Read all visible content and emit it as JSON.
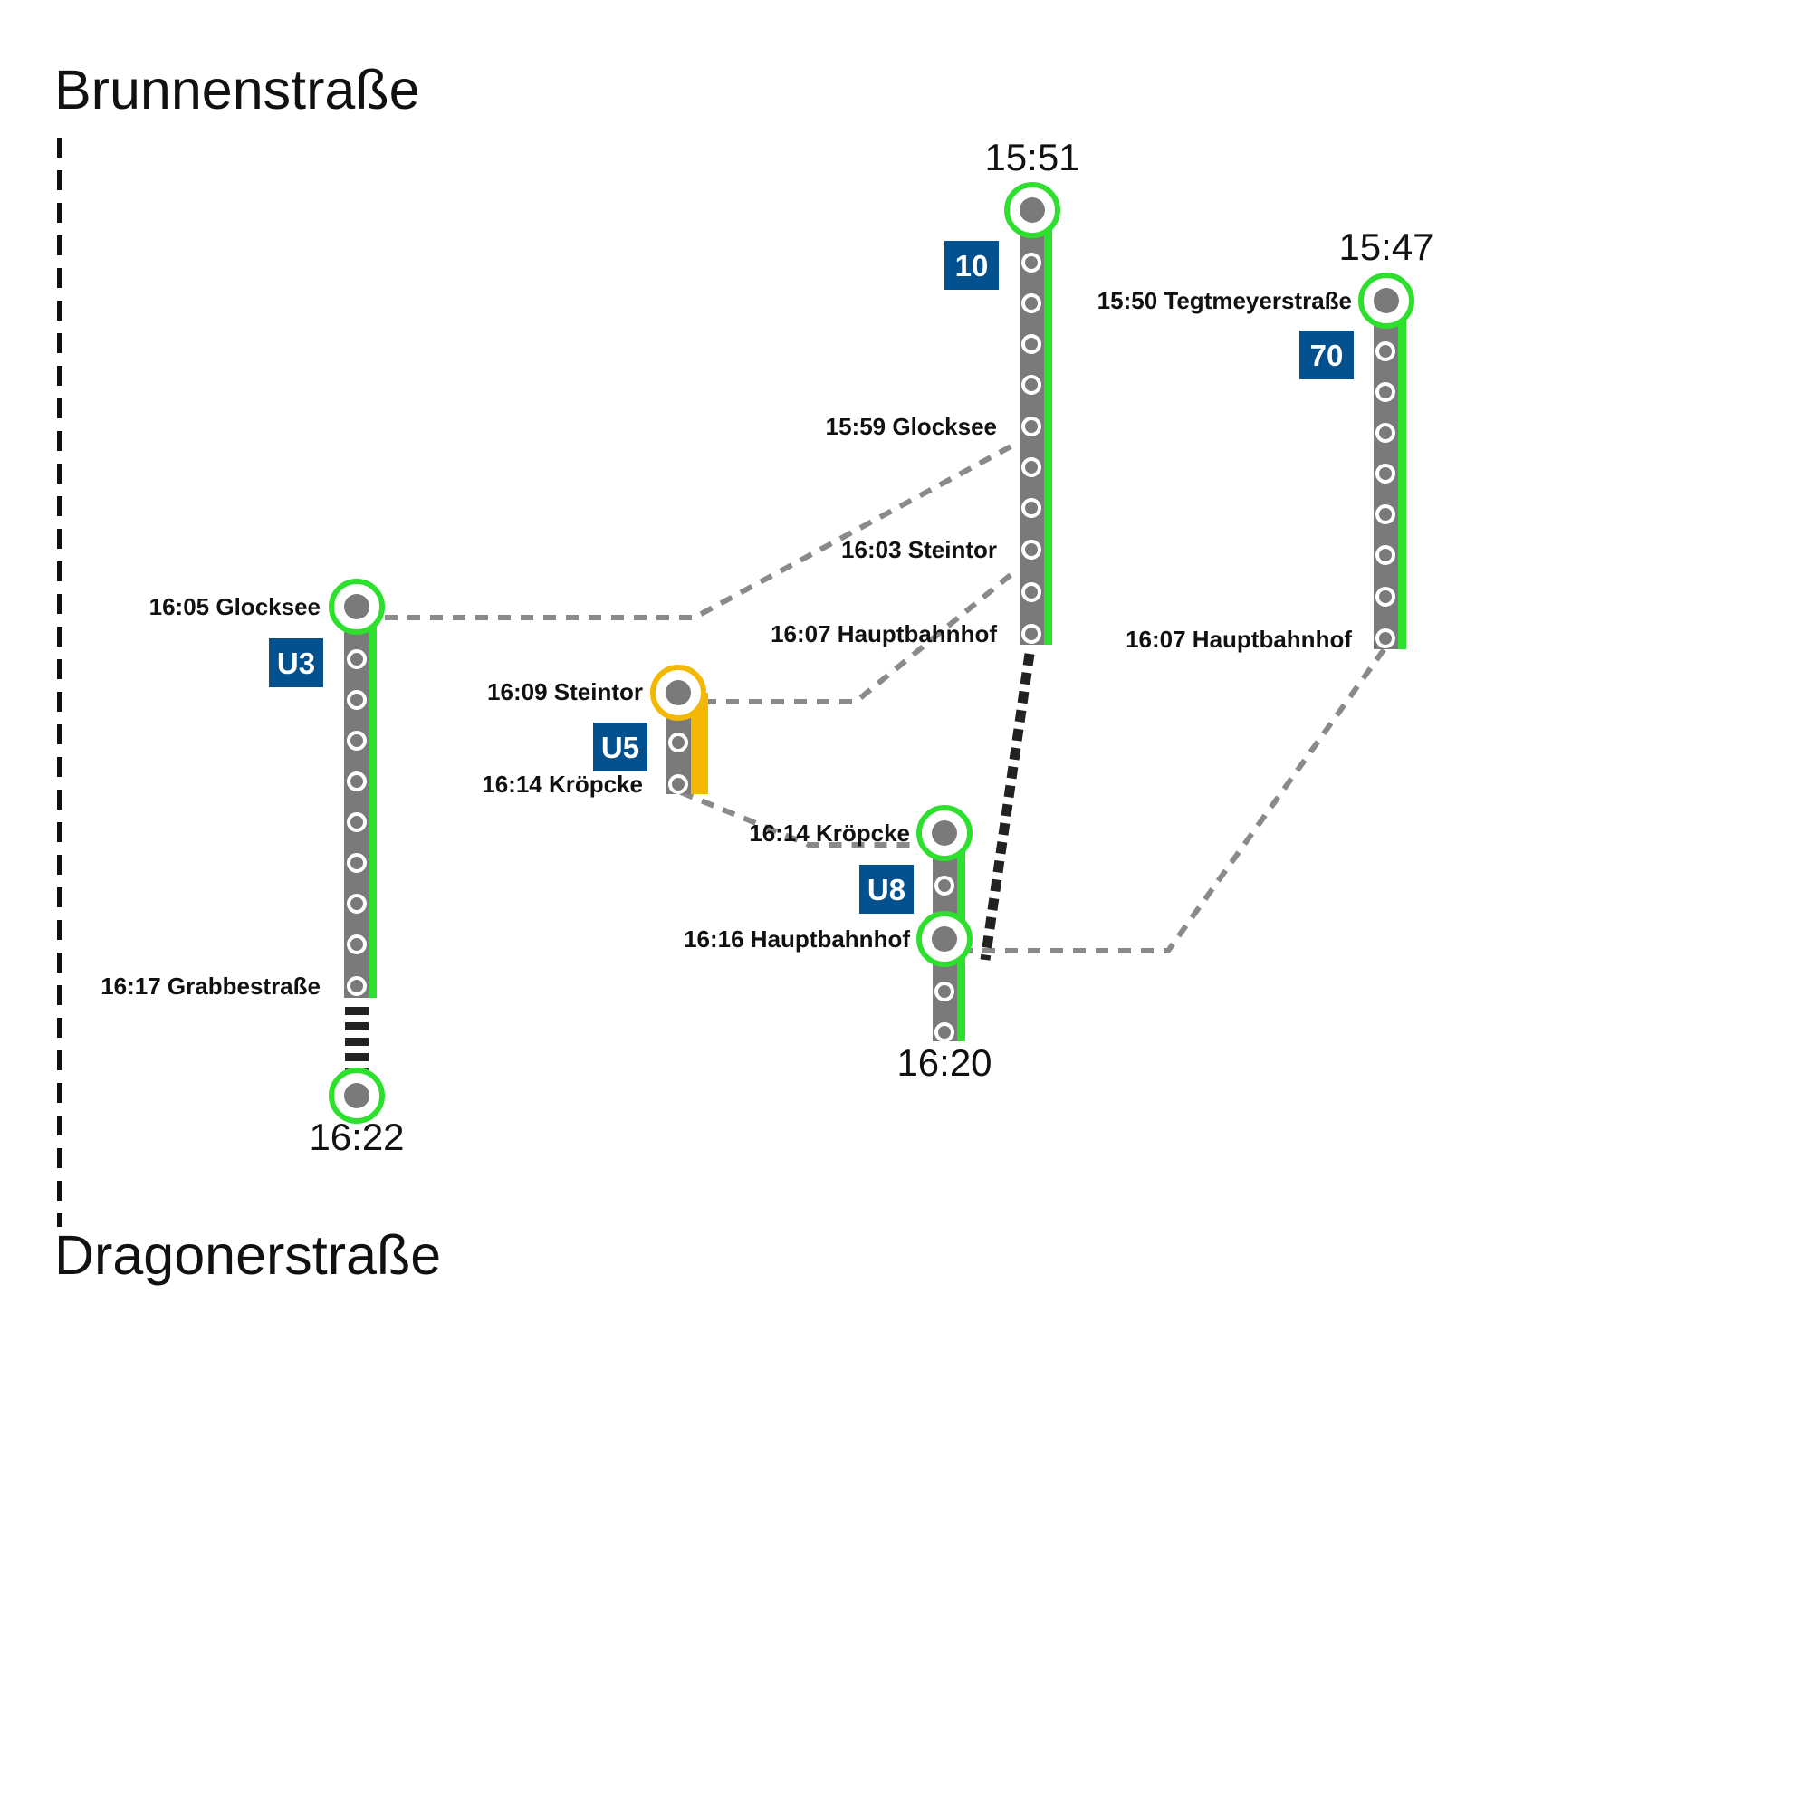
{
  "origin": "Brunnenstraße",
  "destination": "Dragonerstraße",
  "colors": {
    "background": "#ffffff",
    "track": "#7a7a7a",
    "line_green": "#2ee02e",
    "line_yellow": "#f5b800",
    "badge_blue": "#03508f",
    "connector_gray": "#8a8a8a",
    "walk_black": "#222222"
  },
  "routes": [
    {
      "id": "u3",
      "line": "U3",
      "accent": "green",
      "start_time": "",
      "end_time": "16:22",
      "labels": [
        "16:05 Glocksee",
        "16:17 Grabbestraße"
      ]
    },
    {
      "id": "u5",
      "line": "U5",
      "accent": "yellow",
      "start_time": "",
      "end_time": "",
      "labels": [
        "16:09 Steintor",
        "16:14 Kröpcke"
      ]
    },
    {
      "id": "u8",
      "line": "U8",
      "accent": "green",
      "start_time": "",
      "end_time": "16:20",
      "labels": [
        "16:14 Kröpcke",
        "16:16 Hauptbahnhof"
      ]
    },
    {
      "id": "bus10",
      "line": "10",
      "accent": "green",
      "start_time": "15:51",
      "end_time": "",
      "labels": [
        "15:59 Glocksee",
        "16:03 Steintor",
        "16:07 Hauptbahnhof"
      ]
    },
    {
      "id": "bus70",
      "line": "70",
      "accent": "green",
      "start_time": "15:47",
      "end_time": "",
      "labels": [
        "15:50 Tegtmeyerstraße",
        "16:07 Hauptbahnhof"
      ]
    }
  ]
}
